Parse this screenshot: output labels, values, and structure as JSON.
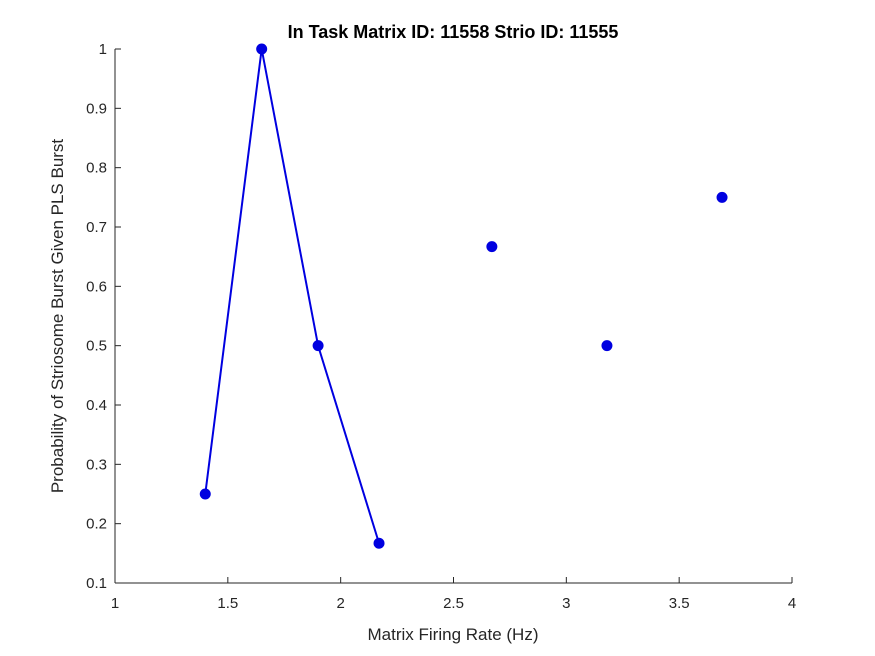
{
  "chart_data": {
    "type": "line",
    "title": "In Task Matrix ID: 11558 Strio ID: 11555",
    "xlabel": "Matrix Firing Rate (Hz)",
    "ylabel": "Probability of Striosome Burst Given PLS Burst",
    "xlim": [
      1,
      4
    ],
    "ylim": [
      0.1,
      1
    ],
    "xticks": [
      1,
      1.5,
      2,
      2.5,
      3,
      3.5,
      4
    ],
    "yticks": [
      0.1,
      0.2,
      0.3,
      0.4,
      0.5,
      0.6,
      0.7,
      0.8,
      0.9,
      1
    ],
    "xtick_labels": [
      "1",
      "1.5",
      "2",
      "2.5",
      "3",
      "3.5",
      "4"
    ],
    "ytick_labels": [
      "0.1",
      "0.2",
      "0.3",
      "0.4",
      "0.5",
      "0.6",
      "0.7",
      "0.8",
      "0.9",
      "1"
    ],
    "grid": false,
    "color": "#0000e0",
    "series": [
      {
        "style": "line+markers",
        "x": [
          1.4,
          1.65,
          1.9,
          2.17
        ],
        "y": [
          0.25,
          1.0,
          0.5,
          0.167
        ]
      },
      {
        "style": "markers",
        "x": [
          2.67,
          3.18,
          3.69
        ],
        "y": [
          0.667,
          0.5,
          0.75
        ]
      }
    ]
  }
}
